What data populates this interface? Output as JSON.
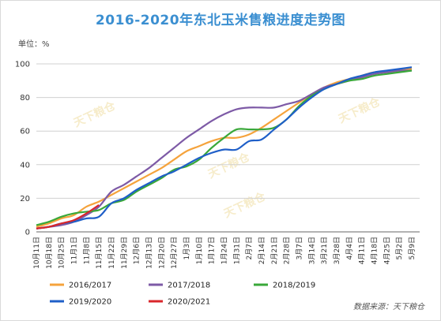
{
  "title": "2016-2020年东北玉米售粮进度走势图",
  "unit_label": "单位：%",
  "source_label": "数据来源：天下粮仓",
  "watermark": "天下粮仓",
  "colors": {
    "title": "#3b8fd1"
  },
  "chart_data": {
    "type": "line",
    "title": "2016-2020年东北玉米售粮进度走势图",
    "ylabel": "单位：%",
    "ylim": [
      0,
      100
    ],
    "yticks": [
      0,
      20,
      40,
      60,
      80,
      100
    ],
    "grid": true,
    "legend_position": "bottom",
    "x_labels": [
      "10月11日",
      "10月18日",
      "10月25日",
      "11月1日",
      "11月8日",
      "11月15日",
      "11月22日",
      "11月29日",
      "12月6日",
      "12月13日",
      "12月20日",
      "12月27日",
      "1月3日",
      "1月10日",
      "1月17日",
      "1月24日",
      "1月31日",
      "2月7日",
      "2月14日",
      "2月21日",
      "2月28日",
      "3月7日",
      "3月14日",
      "3月21日",
      "3月28日",
      "4月4日",
      "4月11日",
      "4月18日",
      "4月25日",
      "5月2日",
      "5月9日"
    ],
    "series": [
      {
        "name": "2016/2017",
        "color": "#f5a33c",
        "values": [
          3,
          5,
          8,
          10,
          15,
          18,
          22,
          26,
          30,
          34,
          38,
          43,
          48,
          51,
          54,
          56,
          56,
          58,
          62,
          67,
          72,
          77,
          82,
          86,
          89,
          91,
          93,
          95,
          95,
          96,
          97
        ]
      },
      {
        "name": "2017/2018",
        "color": "#7d5aa6",
        "values": [
          2,
          3,
          4,
          6,
          10,
          15,
          24,
          28,
          33,
          38,
          44,
          50,
          56,
          61,
          66,
          70,
          73,
          74,
          74,
          74,
          76,
          78,
          82,
          86,
          88,
          90,
          92,
          94,
          95,
          96,
          96
        ]
      },
      {
        "name": "2018/2019",
        "color": "#3aa83a",
        "values": [
          4,
          6,
          9,
          11,
          12,
          13,
          17,
          19,
          24,
          28,
          32,
          37,
          39,
          43,
          50,
          56,
          61,
          61,
          61,
          62,
          67,
          75,
          81,
          85,
          88,
          90,
          91,
          93,
          94,
          95,
          96
        ]
      },
      {
        "name": "2019/2020",
        "color": "#1f5fc8",
        "values": [
          2,
          3,
          5,
          6,
          8,
          9,
          17,
          20,
          25,
          29,
          33,
          36,
          40,
          44,
          47,
          49,
          49,
          54,
          55,
          61,
          67,
          74,
          80,
          85,
          88,
          91,
          93,
          95,
          96,
          97,
          98
        ]
      },
      {
        "name": "2020/2021",
        "color": "#d9262b",
        "values": [
          2,
          3,
          5,
          7,
          11,
          16
        ]
      }
    ]
  }
}
